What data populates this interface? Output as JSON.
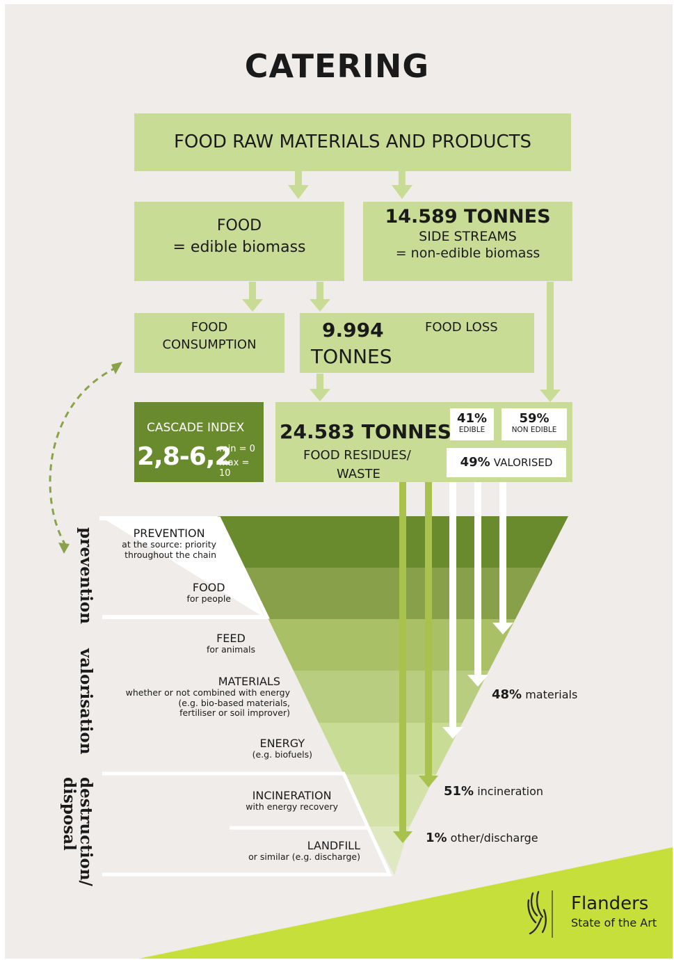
{
  "title": "CATERING",
  "raw_materials": "FOOD RAW MATERIALS AND PRODUCTS",
  "food": {
    "line1": "FOOD",
    "line2": "= edible biomass"
  },
  "side_streams": {
    "amount": "14.589 TONNES",
    "line1": "SIDE STREAMS",
    "line2": "= non-edible biomass"
  },
  "consumption": {
    "line1": "FOOD",
    "line2": "CONSUMPTION"
  },
  "food_loss": {
    "amount1": "9.994",
    "amount2": "TONNES",
    "label": "FOOD LOSS"
  },
  "cascade": {
    "label": "CASCADE INDEX",
    "value": "2,8-6,2",
    "min": "min = 0",
    "max": "max = 10"
  },
  "residues": {
    "amount": "24.583 TONNES",
    "line1": "FOOD RESIDUES/",
    "line2": "WASTE"
  },
  "edible": {
    "pct": "41%",
    "label": "EDIBLE"
  },
  "non_edible": {
    "pct": "59%",
    "label": "NON EDIBLE"
  },
  "valorised": {
    "pct": "49%",
    "label": "VALORISED"
  },
  "levels": [
    {
      "head": "PREVENTION",
      "sub1": "at the source: priority",
      "sub2": "throughout the chain"
    },
    {
      "head": "FOOD",
      "sub1": "for people"
    },
    {
      "head": "FEED",
      "sub1": "for animals"
    },
    {
      "head": "MATERIALS",
      "sub1": "whether or not combined with energy",
      "sub2": "(e.g. bio-based materials,",
      "sub3": "fertiliser or soil improver)"
    },
    {
      "head": "ENERGY",
      "sub1": "(e.g. biofuels)"
    },
    {
      "head": "INCINERATION",
      "sub1": "with energy recovery"
    },
    {
      "head": "LANDFILL",
      "sub1": "or similar (e.g. discharge)"
    }
  ],
  "groups": {
    "prevention": "prevention",
    "valorisation": "valorisation",
    "destruction1": "destruction/",
    "destruction2": "disposal"
  },
  "outcomes": {
    "materials": {
      "pct": "48%",
      "label": "materials"
    },
    "incineration": {
      "pct": "51%",
      "label": "incineration"
    },
    "other": {
      "pct": "1%",
      "label": "other/discharge"
    }
  },
  "logo": {
    "name": "Flanders",
    "tagline": "State of the Art"
  },
  "colors": {
    "light_green": "#c9dc96",
    "dark_green": "#6a8a2e",
    "accent": "#c7df3a"
  }
}
